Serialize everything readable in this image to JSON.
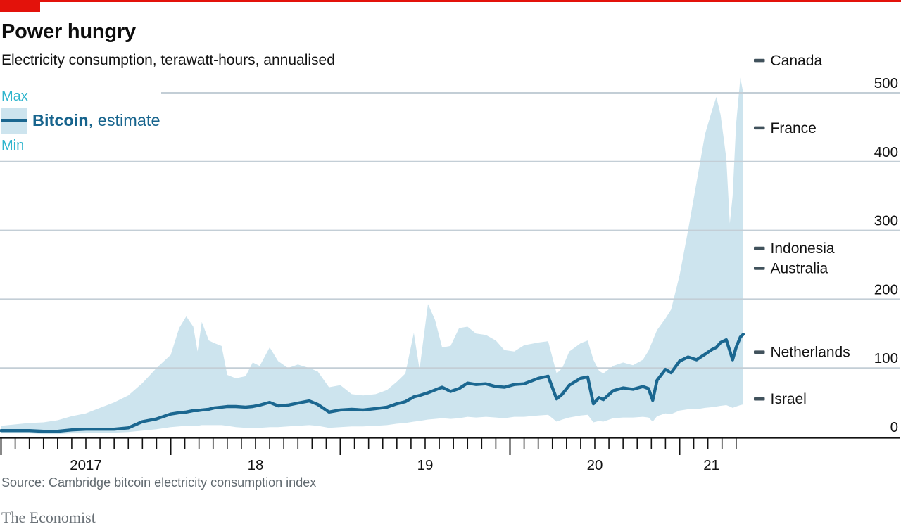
{
  "header": {
    "title": "Power hungry",
    "subtitle": "Electricity consumption, terawatt-hours, annualised"
  },
  "legend": {
    "max": "Max",
    "min": "Min",
    "series_name": "Bitcoin",
    "series_note": ", estimate"
  },
  "footer": {
    "source": "Source: Cambridge bitcoin electricity consumption index",
    "brand": "The Economist"
  },
  "colors": {
    "red": "#e3120b",
    "band": "#cde4ee",
    "line": "#1b6790",
    "cyan": "#2fb5cd",
    "grid": "#c3ced6",
    "axis": "#121212",
    "text": "#121212",
    "muted": "#60696f",
    "marker": "#41525c"
  },
  "chart_data": {
    "type": "area",
    "title": "Power hungry",
    "subtitle": "Electricity consumption, terawatt-hours, annualised",
    "x_unit": "months since Jan 2017",
    "x_range_note": "Jan 2017 to mid-May 2021",
    "x": [
      0,
      1,
      2,
      3,
      4,
      5,
      6,
      7,
      8,
      9,
      10,
      11,
      12,
      12.6,
      13.1,
      13.6,
      13.9,
      14.2,
      14.7,
      15.1,
      15.6,
      16,
      16.6,
      17.3,
      17.8,
      18.3,
      19,
      19.6,
      20.3,
      21,
      21.8,
      22.4,
      23.2,
      24,
      24.8,
      25.6,
      26.5,
      27.3,
      28,
      28.6,
      29.2,
      29.6,
      30.2,
      30.7,
      31.2,
      31.8,
      32.4,
      33,
      33.6,
      34.3,
      35,
      35.6,
      36.3,
      37,
      38,
      38.7,
      39.3,
      39.7,
      40.2,
      41,
      41.5,
      41.9,
      42.3,
      42.6,
      43.3,
      44,
      44.7,
      45.4,
      45.8,
      46.1,
      46.4,
      47,
      47.4,
      48,
      48.6,
      49.2,
      49.8,
      50.3,
      50.6,
      50.9,
      51.3,
      51.55,
      51.75,
      52,
      52.3,
      52.5
    ],
    "series": [
      {
        "name": "Min",
        "values": [
          5,
          5,
          5,
          4,
          4,
          5,
          5,
          6,
          6,
          7,
          9,
          11,
          14,
          15,
          16,
          16,
          16,
          17,
          17,
          17,
          17,
          16,
          14,
          13,
          13,
          13,
          14,
          14,
          15,
          16,
          17,
          16,
          13,
          14,
          15,
          15,
          16,
          17,
          19,
          20,
          22,
          23,
          25,
          26,
          27,
          26,
          27,
          29,
          28,
          29,
          28,
          27,
          29,
          29,
          31,
          32,
          22,
          25,
          28,
          31,
          32,
          21,
          23,
          22,
          27,
          28,
          28,
          29,
          28,
          22,
          30,
          34,
          33,
          38,
          40,
          40,
          42,
          43,
          44,
          45,
          46,
          44,
          42,
          44,
          46,
          47
        ]
      },
      {
        "name": "Bitcoin, estimate",
        "values": [
          9,
          9,
          9,
          8,
          8,
          10,
          11,
          11,
          11,
          13,
          22,
          26,
          33,
          35,
          36,
          38,
          38,
          39,
          40,
          42,
          43,
          44,
          44,
          43,
          44,
          46,
          50,
          45,
          46,
          49,
          52,
          47,
          36,
          39,
          40,
          39,
          41,
          43,
          48,
          51,
          58,
          60,
          64,
          68,
          72,
          66,
          70,
          78,
          76,
          77,
          73,
          72,
          76,
          77,
          85,
          88,
          55,
          62,
          75,
          85,
          87,
          48,
          57,
          54,
          67,
          71,
          69,
          73,
          70,
          53,
          82,
          98,
          93,
          110,
          116,
          112,
          120,
          127,
          130,
          137,
          141,
          125,
          112,
          130,
          145,
          149
        ]
      },
      {
        "name": "Max",
        "values": [
          16,
          18,
          20,
          21,
          24,
          30,
          34,
          42,
          50,
          60,
          78,
          100,
          119,
          158,
          175,
          160,
          124,
          167,
          140,
          136,
          132,
          90,
          85,
          88,
          108,
          103,
          130,
          110,
          100,
          105,
          100,
          95,
          72,
          75,
          62,
          60,
          62,
          68,
          80,
          92,
          151,
          98,
          193,
          170,
          130,
          132,
          158,
          160,
          150,
          148,
          140,
          126,
          124,
          133,
          137,
          139,
          92,
          100,
          124,
          136,
          140,
          112,
          96,
          92,
          103,
          108,
          104,
          112,
          125,
          140,
          155,
          172,
          185,
          235,
          300,
          370,
          440,
          475,
          494,
          468,
          405,
          310,
          350,
          455,
          522,
          500
        ]
      }
    ],
    "y_axis": {
      "ticks": [
        0,
        100,
        200,
        300,
        400,
        500
      ],
      "range": [
        0,
        540
      ],
      "grid": true
    },
    "x_axis": {
      "year_start_months": [
        0,
        12,
        24,
        36,
        48
      ],
      "year_labels": [
        "2017",
        "18",
        "19",
        "20",
        "21"
      ],
      "minor_tick": "monthly",
      "data_end_month": 52.5
    },
    "country_markers": [
      {
        "label": "Canada",
        "value": 547
      },
      {
        "label": "France",
        "value": 449
      },
      {
        "label": "Indonesia",
        "value": 274
      },
      {
        "label": "Australia",
        "value": 245
      },
      {
        "label": "Netherlands",
        "value": 123
      },
      {
        "label": "Israel",
        "value": 55
      }
    ],
    "legend_note": {
      "band": "Max–Min range",
      "line": "Bitcoin, estimate"
    }
  }
}
